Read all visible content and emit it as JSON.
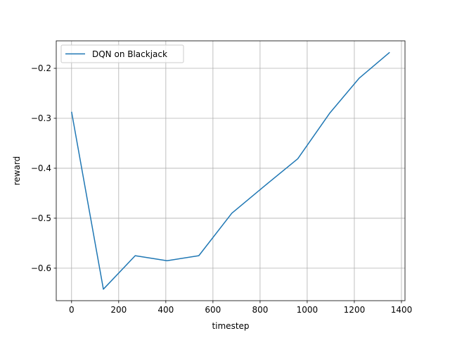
{
  "chart_data": {
    "type": "line",
    "xlabel": "timestep",
    "ylabel": "reward",
    "xlim": [
      -65,
      1415
    ],
    "ylim": [
      -0.665,
      -0.145
    ],
    "xticks": [
      0,
      200,
      400,
      600,
      800,
      1000,
      1200,
      1400
    ],
    "xtick_labels": [
      "0",
      "200",
      "400",
      "600",
      "800",
      "1000",
      "1200",
      "1400"
    ],
    "yticks": [
      -0.6,
      -0.5,
      -0.4,
      -0.3,
      -0.2
    ],
    "ytick_labels": [
      "−0.6",
      "−0.5",
      "−0.4",
      "−0.3",
      "−0.2"
    ],
    "grid": true,
    "legend_position": "top-left",
    "series": [
      {
        "name": "DQN on Blackjack",
        "color": "#1f77b4",
        "x": [
          0,
          135,
          270,
          405,
          540,
          680,
          820,
          960,
          1095,
          1220,
          1350
        ],
        "y": [
          -0.287,
          -0.642,
          -0.575,
          -0.585,
          -0.575,
          -0.49,
          -0.435,
          -0.381,
          -0.29,
          -0.22,
          -0.168
        ]
      }
    ]
  }
}
